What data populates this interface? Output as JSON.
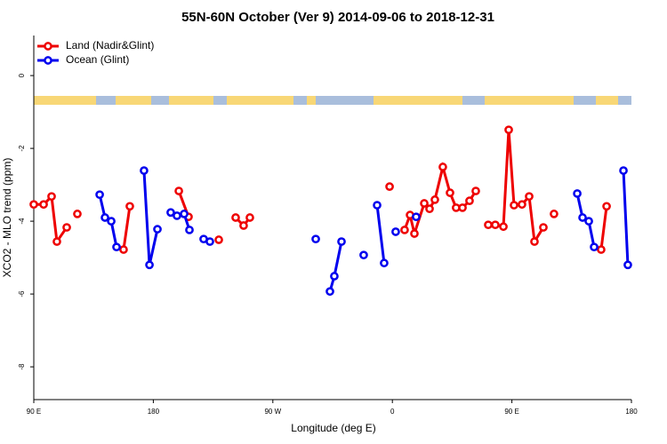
{
  "chart_data": {
    "type": "line",
    "title": "55N-60N October (Ver 9)   2014-09-06 to 2018-12-31",
    "xlabel": "Longitude (deg E)",
    "ylabel": "XCO2 - MLO trend (ppm)",
    "xlim": [
      90,
      540
    ],
    "ylim": [
      -8.9,
      1.1
    ],
    "xticks": [
      {
        "value": 90,
        "label": "90 E"
      },
      180,
      {
        "value": 270,
        "label": "90 W"
      },
      {
        "value": 360,
        "label": "0"
      },
      {
        "value": 450,
        "label": "90 E"
      },
      {
        "value": 540,
        "label": "180"
      }
    ],
    "yticks": [
      0,
      -2,
      -4,
      -6,
      -8
    ],
    "legend": "top-left",
    "series": [
      {
        "name": "Land (Nadir&Glint)",
        "color": "#ee0000",
        "x": [
          90,
          97.4,
          103.4,
          107.4,
          114.8,
          null,
          122.8,
          null,
          157.6,
          162.3,
          null,
          199.2,
          206.5,
          null,
          229.3,
          null,
          242,
          248,
          252.7,
          null,
          357.9,
          null,
          369.2,
          373.3,
          376.6,
          384,
          388,
          392,
          398,
          403.4,
          408,
          412.8,
          418.1,
          422.8,
          null,
          432.2,
          437.5,
          443.6,
          447.6,
          451.6,
          457.6,
          463,
          467,
          473.7,
          null,
          481.7,
          null,
          517.2,
          521.3
        ],
        "values": [
          -3.54,
          -3.54,
          -3.32,
          -4.56,
          -4.17,
          null,
          -3.8,
          null,
          -4.78,
          -3.59,
          null,
          -3.17,
          -3.88,
          null,
          -4.51,
          null,
          -3.9,
          -4.12,
          -3.9,
          null,
          -3.05,
          null,
          -4.24,
          -3.83,
          -4.34,
          -3.51,
          -3.66,
          -3.41,
          -2.51,
          -3.22,
          -3.63,
          -3.63,
          -3.44,
          -3.17,
          null,
          -4.1,
          -4.1,
          -4.15,
          -1.49,
          -3.56,
          -3.54,
          -3.32,
          -4.56,
          -4.17,
          null,
          -3.8,
          null,
          -4.78,
          -3.59
        ]
      },
      {
        "name": "Ocean (Glint)",
        "color": "#0000ee",
        "x": [
          139.6,
          143.6,
          148.3,
          152.3,
          null,
          173,
          177.1,
          183.1,
          null,
          193.1,
          197.8,
          203.2,
          207.2,
          null,
          217.9,
          222.6,
          null,
          302.3,
          null,
          313,
          316.3,
          321.7,
          null,
          338.4,
          null,
          348.5,
          353.8,
          null,
          362.5,
          null,
          377.9,
          null,
          499.2,
          503.2,
          507.9,
          511.9,
          null,
          534,
          537.3
        ],
        "values": [
          -3.27,
          -3.9,
          -4.0,
          -4.71,
          null,
          -2.61,
          -5.2,
          -4.22,
          null,
          -3.76,
          -3.85,
          -3.8,
          -4.24,
          null,
          -4.49,
          -4.56,
          null,
          -4.49,
          null,
          -5.93,
          -5.51,
          -4.56,
          null,
          -4.93,
          null,
          -3.56,
          -5.15,
          null,
          -4.29,
          null,
          -3.88,
          null,
          -3.24,
          -3.9,
          -4.0,
          -4.71,
          null,
          -2.61,
          -5.2
        ]
      }
    ]
  }
}
